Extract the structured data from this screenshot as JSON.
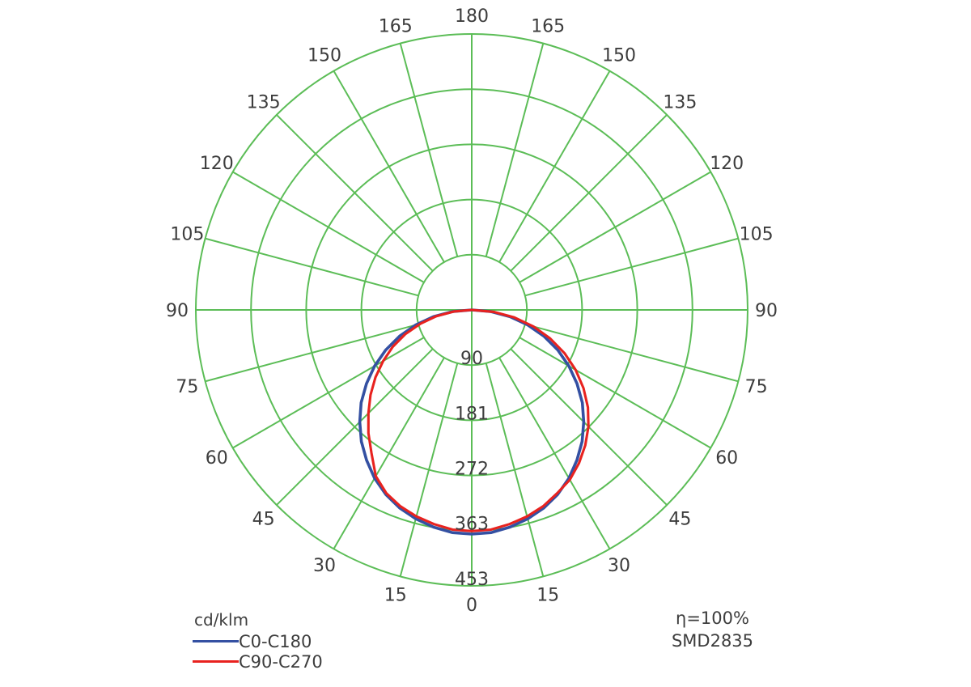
{
  "text_color": "#3d3d3d",
  "background_color": "#ffffff",
  "chart_data": {
    "type": "line",
    "coordinate_system": "polar-photometric",
    "title": "",
    "units": "cd/klm",
    "grid_color": "#5cbd57",
    "grid_on": true,
    "angle_ticks_deg": [
      0,
      15,
      30,
      45,
      60,
      75,
      90,
      105,
      120,
      135,
      150,
      165,
      180
    ],
    "angle_tick_layout": "0 at bottom, 180 at top, 15-165 mirrored on left and right sides",
    "radial_ticks": [
      90,
      181,
      272,
      363,
      453
    ],
    "radial_max": 453,
    "gamma_deg": [
      -90,
      -85,
      -80,
      -75,
      -70,
      -65,
      -60,
      -55,
      -50,
      -45,
      -40,
      -35,
      -30,
      -25,
      -20,
      -15,
      -10,
      -5,
      0,
      5,
      10,
      15,
      20,
      25,
      30,
      35,
      40,
      45,
      50,
      55,
      60,
      65,
      70,
      75,
      80,
      85,
      90
    ],
    "series": [
      {
        "name": "C0-C180",
        "color": "#3450a2",
        "intensity": [
          0,
          32,
          64,
          95,
          126,
          156,
          184,
          211,
          237,
          260,
          282,
          301,
          319,
          334,
          346,
          355,
          362,
          367,
          368,
          367,
          362,
          355,
          346,
          334,
          319,
          301,
          282,
          260,
          237,
          211,
          184,
          156,
          126,
          95,
          64,
          32,
          0
        ]
      },
      {
        "name": "C90-C270",
        "color": "#e8221f",
        "intensity": [
          0,
          29,
          59,
          87,
          116,
          143,
          168,
          193,
          217,
          240,
          264,
          287,
          315,
          332,
          343,
          351,
          357,
          362,
          363,
          362,
          357,
          351,
          343,
          332,
          322,
          307,
          290,
          271,
          249,
          224,
          197,
          168,
          137,
          105,
          71,
          36,
          0
        ]
      }
    ],
    "legend_position": "bottom-left",
    "annotations": [
      "η=100%",
      "SMD2835"
    ]
  },
  "legend": {
    "title": "cd/klm",
    "items": [
      {
        "label": "C0-C180",
        "color": "#3450a2"
      },
      {
        "label": "C90-C270",
        "color": "#e8221f"
      }
    ]
  },
  "side_text": {
    "line1": "η=100%",
    "line2": "SMD2835"
  }
}
